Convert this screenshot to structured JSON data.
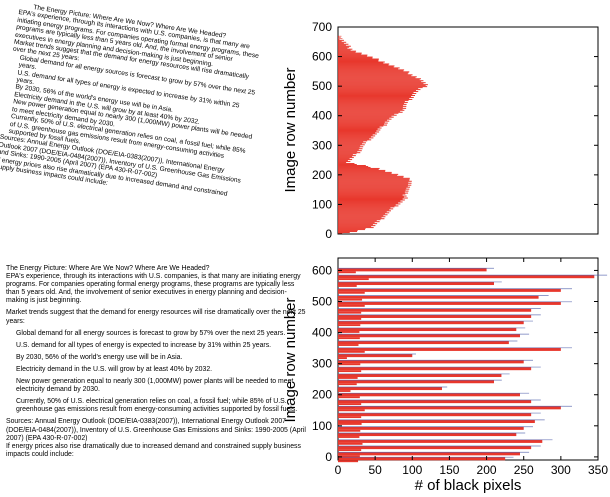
{
  "documents": {
    "skewed": {
      "title": "The Energy Picture: Where Are We Now? Where Are We Headed?",
      "paragraphs": [
        "EPA's experience, through its interactions with U.S. companies, is that many are initiating energy programs. For companies operating formal energy programs, these programs are typically less than 5 years old. And, the involvement of senior executives in energy planning and decision-making is just beginning.",
        "Market trends suggest that the demand for energy resources will rise dramatically over the next 25 years:",
        "Global demand for all energy sources is forecast to grow by 57% over the next 25 years.",
        "U.S. demand for all types of energy is expected to increase by 31% within 25 years.",
        "By 2030, 56% of the world's energy use will be in Asia.",
        "Electricity demand in the U.S. will grow by at least 40% by 2032.",
        "New power generation equal to nearly 300 (1,000MW) power plants will be needed to meet electricity demand by 2030.",
        "Currently, 50% of U.S. electrical generation relies on coal, a fossil fuel; while 85% of U.S. greenhouse gas emissions result from energy-consuming activities supported by fossil fuels.",
        "Sources: Annual Energy Outlook (DOE/EIA-0383(2007)), International Energy Outlook 2007 (DOE/EIA-0484(2007)), Inventory of U.S. Greenhouse Gas Emissions and Sinks: 1990-2005 (April 2007) (EPA 430-R-07-002)",
        "If energy prices also rise dramatically due to increased demand and constrained supply business impacts could include:"
      ]
    },
    "straight": {
      "title": "The Energy Picture: Where Are We Now? Where Are We Headed?",
      "paragraphs": [
        "EPA's experience, through its interactions with U.S. companies, is that many are initiating energy programs. For companies operating formal energy programs, these programs are typically less than 5 years old. And, the involvement of senior executives in energy planning and decision-making is just beginning.",
        "Market trends suggest that the demand for energy resources will rise dramatically over the next 25 years:",
        "Global demand for all energy sources is forecast to grow by 57% over the next 25 years.",
        "U.S. demand for all types of energy is expected to increase by 31% within 25 years.",
        "By 2030, 56% of the world's energy use will be in Asia.",
        "Electricity demand in the U.S. will grow by at least 40% by 2032.",
        "New power generation equal to nearly 300 (1,000MW) power plants will be needed to meet electricity demand by 2030.",
        "Currently, 50% of U.S. electrical generation relies on coal, a fossil fuel; while 85% of U.S. greenhouse gas emissions result from energy-consuming activities supported by fossil fuels.",
        "Sources: Annual Energy Outlook (DOE/EIA-0383(2007)), International Energy Outlook 2007 (DOE/EIA-0484(2007)), Inventory of U.S. Greenhouse Gas Emissions and Sinks: 1990-2005 (April 2007) (EPA 430-R-07-002)",
        "If energy prices also rise dramatically due to increased demand and constrained supply business impacts could include:"
      ]
    }
  },
  "chart_data": [
    {
      "type": "bar",
      "orientation": "horizontal",
      "ylabel": "Image row number",
      "xlabel": "",
      "ylim": [
        0,
        700
      ],
      "yticks": [
        0,
        100,
        200,
        300,
        400,
        500,
        600,
        700
      ],
      "xlim": [
        0,
        350
      ],
      "bar_color": "#e8372c",
      "profile_rows": [
        0,
        20,
        40,
        60,
        80,
        100,
        120,
        140,
        160,
        180,
        200,
        220,
        240,
        260,
        280,
        300,
        320,
        340,
        360,
        380,
        400,
        420,
        440,
        460,
        480,
        500,
        520,
        540,
        560,
        580,
        600,
        620,
        640,
        660,
        670
      ],
      "profile_pixels": [
        10,
        45,
        55,
        62,
        72,
        80,
        92,
        90,
        96,
        100,
        78,
        55,
        12,
        22,
        28,
        34,
        42,
        52,
        60,
        66,
        78,
        88,
        92,
        98,
        106,
        118,
        112,
        98,
        80,
        62,
        40,
        20,
        10,
        4,
        0
      ]
    },
    {
      "type": "bar",
      "orientation": "horizontal",
      "ylabel": "Image row number",
      "xlabel": "# of black pixels",
      "ylim": [
        -10,
        640
      ],
      "yticks": [
        0,
        100,
        200,
        300,
        400,
        500,
        600
      ],
      "xlim": [
        0,
        350
      ],
      "xticks": [
        0,
        50,
        100,
        150,
        200,
        250,
        300,
        350
      ],
      "bar_color": "#e8372c",
      "rows": [
        600,
        578,
        556,
        534,
        512,
        492,
        470,
        450,
        430,
        408,
        388,
        366,
        344,
        324,
        304,
        282,
        260,
        240,
        218,
        198,
        176,
        156,
        134,
        112,
        90,
        70,
        48,
        28,
        8,
        -8
      ],
      "pixels": [
        200,
        345,
        210,
        300,
        270,
        300,
        260,
        260,
        250,
        240,
        245,
        230,
        300,
        100,
        250,
        260,
        220,
        210,
        140,
        245,
        260,
        300,
        260,
        265,
        250,
        240,
        275,
        260,
        245,
        225
      ]
    }
  ]
}
